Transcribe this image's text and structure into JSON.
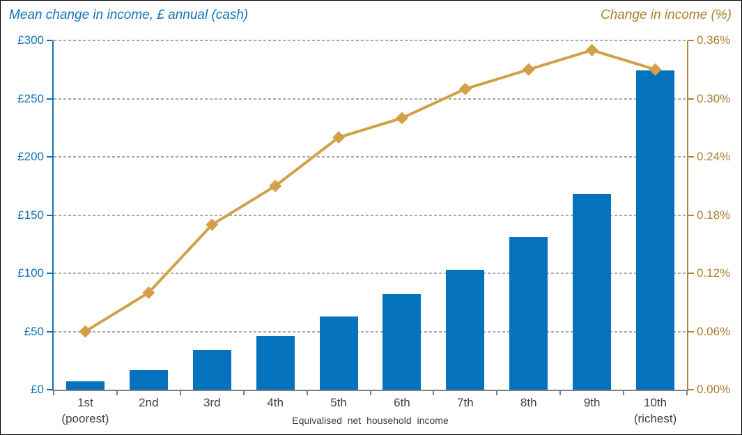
{
  "titles": {
    "left": "Mean change in income, £ annual (cash)",
    "right": "Change in income (%)"
  },
  "colors": {
    "bar_blue": "#0572BE",
    "left_axis_text": "#1173B6",
    "left_axis_line": "#1173B6",
    "line_gold": "#D3A049",
    "right_axis_text": "#A9802D",
    "right_axis_line": "#B28733",
    "gridline_gray": "#A9A9A9",
    "x_axis_line": "#808080",
    "x_axis_text": "#3F3F3F",
    "background": "#FFFFFF",
    "border": "#000000"
  },
  "chart_data": {
    "type": "combo-bar-line",
    "categories": [
      "1st",
      "2nd",
      "3rd",
      "4th",
      "5th",
      "6th",
      "7th",
      "8th",
      "9th",
      "10th"
    ],
    "category_sublabels": [
      "(poorest)",
      "",
      "",
      "",
      "",
      "",
      "",
      "",
      "",
      "(richest)"
    ],
    "xlabel": "Equivalised net household income",
    "series": [
      {
        "name": "Mean change in income, £ annual (cash)",
        "type": "bar",
        "axis": "left",
        "color": "#0572BE",
        "values": [
          7,
          17,
          34,
          46,
          63,
          82,
          103,
          131,
          168,
          274
        ]
      },
      {
        "name": "Change in income (%)",
        "type": "line",
        "axis": "right",
        "color": "#D3A049",
        "marker": "diamond",
        "values": [
          0.06,
          0.1,
          0.17,
          0.21,
          0.26,
          0.28,
          0.31,
          0.33,
          0.35,
          0.33
        ]
      }
    ],
    "left_axis": {
      "title": "Mean change in income, £ annual (cash)",
      "min": 0,
      "max": 300,
      "step": 50,
      "tick_labels": [
        "£0",
        "£50",
        "£100",
        "£150",
        "£200",
        "£250",
        "£300"
      ]
    },
    "right_axis": {
      "title": "Change in income (%)",
      "min": 0,
      "max": 0.36,
      "step": 0.06,
      "tick_labels": [
        "0.00%",
        "0.06%",
        "0.12%",
        "0.18%",
        "0.24%",
        "0.30%",
        "0.36%"
      ]
    },
    "grid": "dashed-horizontal",
    "legend": "none"
  }
}
